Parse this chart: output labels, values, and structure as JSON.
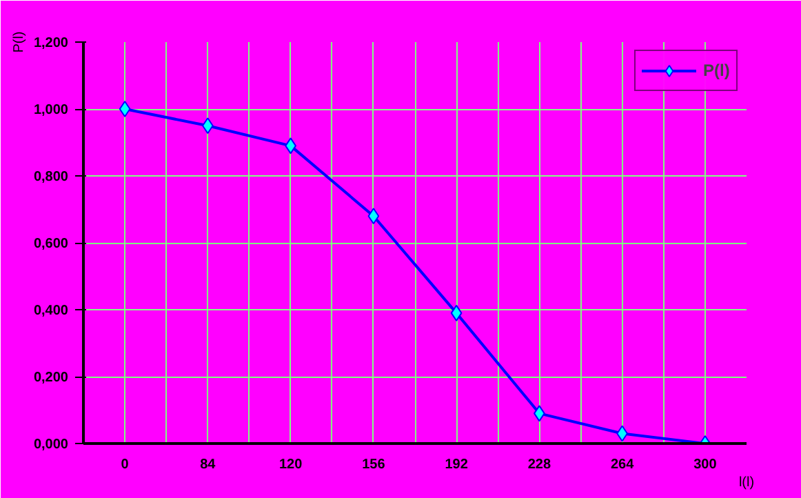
{
  "chart_data": {
    "type": "line",
    "xlabel": "l(l)",
    "ylabel": "P(l)",
    "categories": [
      "0",
      "84",
      "120",
      "156",
      "192",
      "228",
      "264",
      "300"
    ],
    "series": [
      {
        "name": "P(l)",
        "color": "#0000ff",
        "values": [
          1.0,
          0.95,
          0.89,
          0.68,
          0.39,
          0.09,
          0.03,
          0.0
        ]
      }
    ],
    "ylim": [
      0,
      1.2
    ],
    "yticks": [
      {
        "value": 0,
        "label": "0,000"
      },
      {
        "value": 0.2,
        "label": "0,200"
      },
      {
        "value": 0.4,
        "label": "0,400"
      },
      {
        "value": 0.6,
        "label": "0,600"
      },
      {
        "value": 0.8,
        "label": "0,800"
      },
      {
        "value": 1.0,
        "label": "1,000"
      },
      {
        "value": 1.2,
        "label": "1,200"
      }
    ],
    "grid": true,
    "legend": "top right",
    "marker": "diamond",
    "line_style": "solid"
  }
}
